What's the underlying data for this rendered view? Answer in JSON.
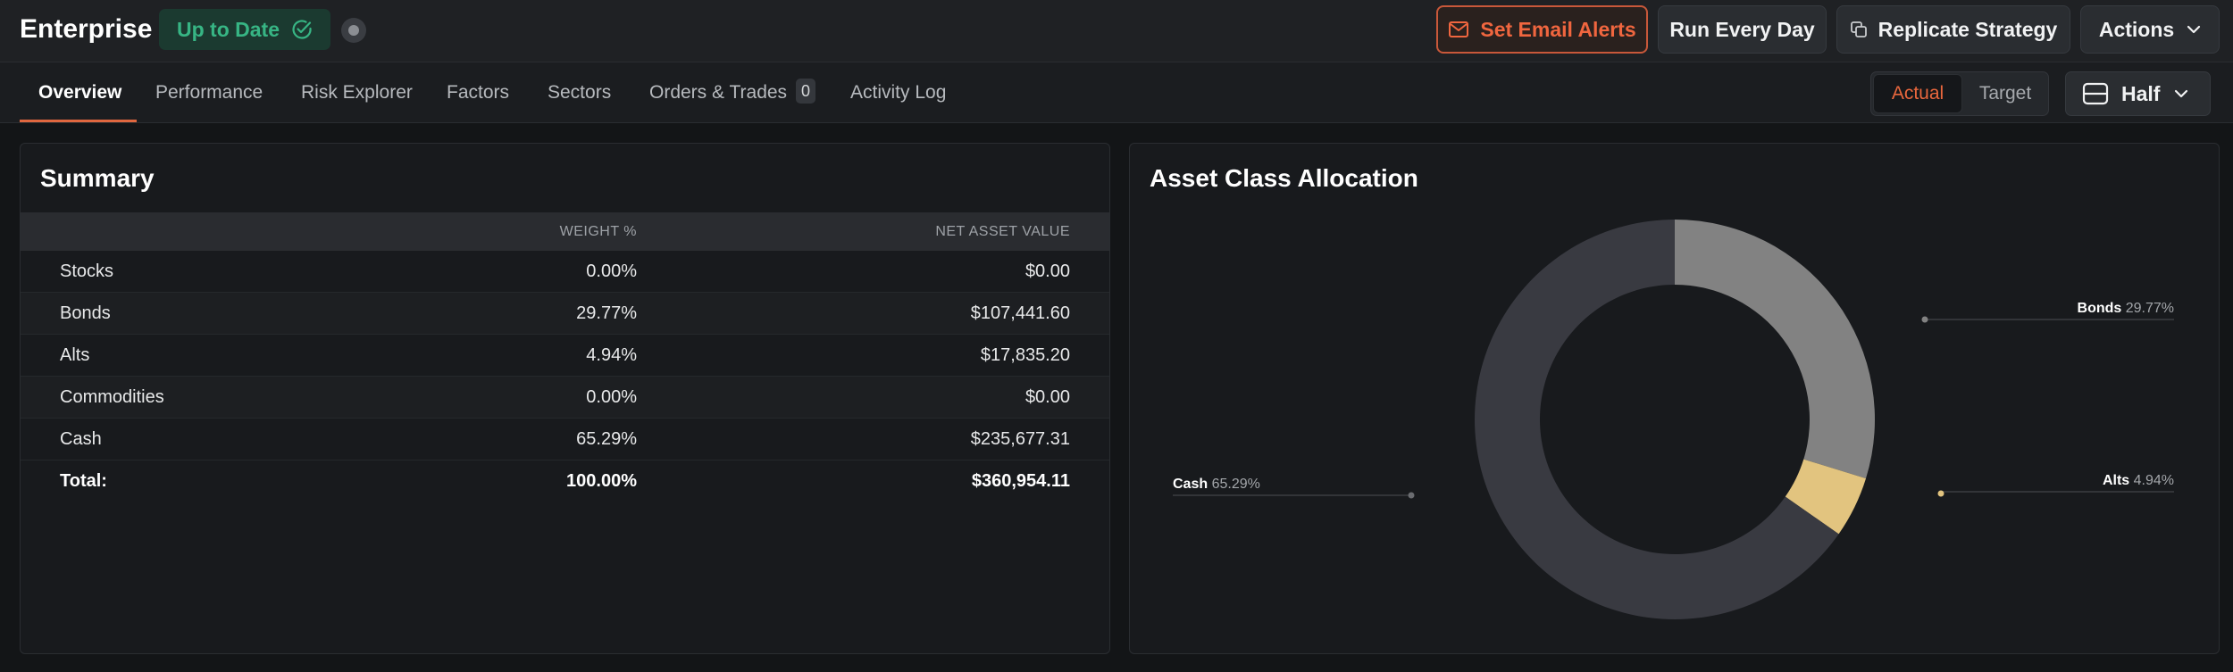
{
  "app": {
    "title": "Enterprise",
    "status": "Up to Date",
    "status_color": "#37b584"
  },
  "toolbar": {
    "email_alerts": "Set Email Alerts",
    "run_every_day": "Run Every Day",
    "replicate": "Replicate Strategy",
    "actions": "Actions"
  },
  "tabs": [
    {
      "label": "Overview",
      "active": true
    },
    {
      "label": "Performance"
    },
    {
      "label": "Risk Explorer"
    },
    {
      "label": "Factors"
    },
    {
      "label": "Sectors"
    },
    {
      "label": "Orders & Trades",
      "badge": "0"
    },
    {
      "label": "Activity Log"
    }
  ],
  "view_toggle": {
    "actual": "Actual",
    "target": "Target",
    "selected": "Actual"
  },
  "layout_select": {
    "label": "Half"
  },
  "summary": {
    "title": "Summary",
    "columns": [
      "",
      "WEIGHT %",
      "NET ASSET VALUE"
    ],
    "rows": [
      {
        "name": "Stocks",
        "weight": "0.00%",
        "nav": "$0.00"
      },
      {
        "name": "Bonds",
        "weight": "29.77%",
        "nav": "$107,441.60"
      },
      {
        "name": "Alts",
        "weight": "4.94%",
        "nav": "$17,835.20"
      },
      {
        "name": "Commodities",
        "weight": "0.00%",
        "nav": "$0.00"
      },
      {
        "name": "Cash",
        "weight": "65.29%",
        "nav": "$235,677.31"
      }
    ],
    "total": {
      "name": "Total:",
      "weight": "100.00%",
      "nav": "$360,954.11"
    }
  },
  "allocation": {
    "title": "Asset Class Allocation",
    "labels": [
      {
        "name": "Bonds",
        "pct": "29.77%"
      },
      {
        "name": "Alts",
        "pct": "4.94%"
      },
      {
        "name": "Cash",
        "pct": "65.29%"
      }
    ]
  },
  "chart_data": {
    "type": "pie",
    "title": "Asset Class Allocation",
    "categories": [
      "Bonds",
      "Alts",
      "Cash"
    ],
    "values": [
      29.77,
      4.94,
      65.29
    ],
    "colors": [
      "#828282",
      "#e2c47f",
      "#393a41"
    ],
    "legend": "none"
  },
  "colors": {
    "accent": "#e9673d",
    "background": "#131517",
    "panel": "#181a1d"
  }
}
